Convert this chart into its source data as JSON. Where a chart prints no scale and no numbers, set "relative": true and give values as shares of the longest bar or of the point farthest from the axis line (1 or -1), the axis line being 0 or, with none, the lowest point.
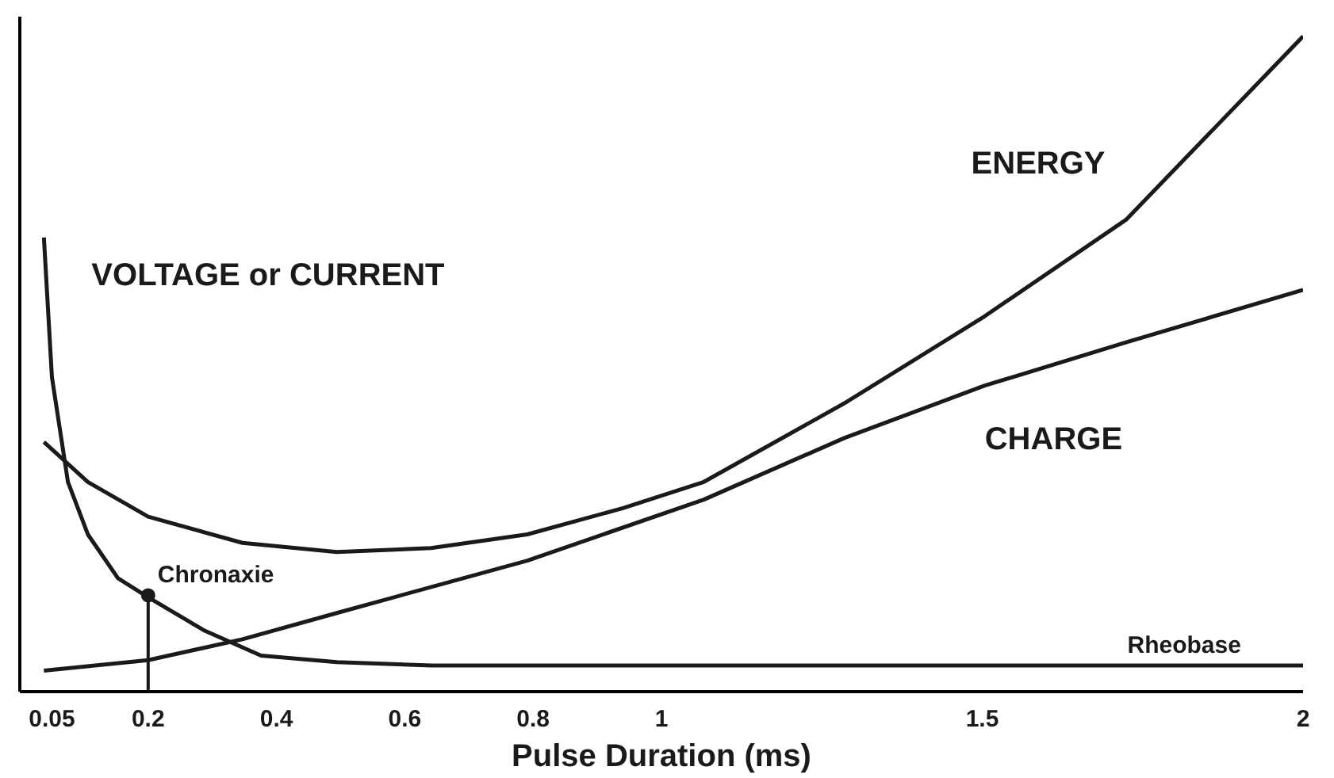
{
  "chart_data": {
    "type": "line",
    "relative": true,
    "xlabel": "Pulse Duration (ms)",
    "xlim": [
      0,
      2
    ],
    "xticks": [
      0.05,
      0.2,
      0.4,
      0.6,
      0.8,
      1,
      1.5,
      2
    ],
    "series": [
      {
        "name": "VOLTAGE or CURRENT",
        "color": "#1a1a1a",
        "x": [
          0.0375,
          0.05,
          0.075,
          0.106,
          0.153,
          0.2,
          0.288,
          0.376,
          0.494,
          0.642,
          1.066,
          2
        ],
        "values": [
          0.693,
          0.48,
          0.32,
          0.24,
          0.173,
          0.144,
          0.093,
          0.055,
          0.045,
          0.04,
          0.04,
          0.04
        ]
      },
      {
        "name": "ENERGY",
        "color": "#1a1a1a",
        "x": [
          0.0375,
          0.106,
          0.2,
          0.347,
          0.494,
          0.641,
          0.791,
          0.94,
          1.066,
          1.285,
          1.504,
          1.724,
          2
        ],
        "values": [
          0.381,
          0.32,
          0.267,
          0.227,
          0.213,
          0.219,
          0.24,
          0.28,
          0.32,
          0.44,
          0.573,
          0.72,
          1
        ]
      },
      {
        "name": "CHARGE",
        "color": "#1a1a1a",
        "x": [
          0.0375,
          0.2,
          0.347,
          0.494,
          0.791,
          1.066,
          1.285,
          1.504,
          1.724,
          2
        ],
        "values": [
          0.032,
          0.048,
          0.08,
          0.12,
          0.2,
          0.293,
          0.387,
          0.467,
          0.533,
          0.613
        ]
      },
      {
        "type": "lollipop",
        "color": "#1a1a1a",
        "marker": "circle",
        "x": [
          0.2
        ],
        "values": [
          0.147
        ]
      }
    ],
    "annotations": [
      {
        "text": "Chronaxie",
        "x": 0.2,
        "y": 0.147
      },
      {
        "text": "Rheobase",
        "x": 1.8,
        "y": 0.04
      }
    ],
    "line_style": "solid",
    "marker": "none"
  }
}
